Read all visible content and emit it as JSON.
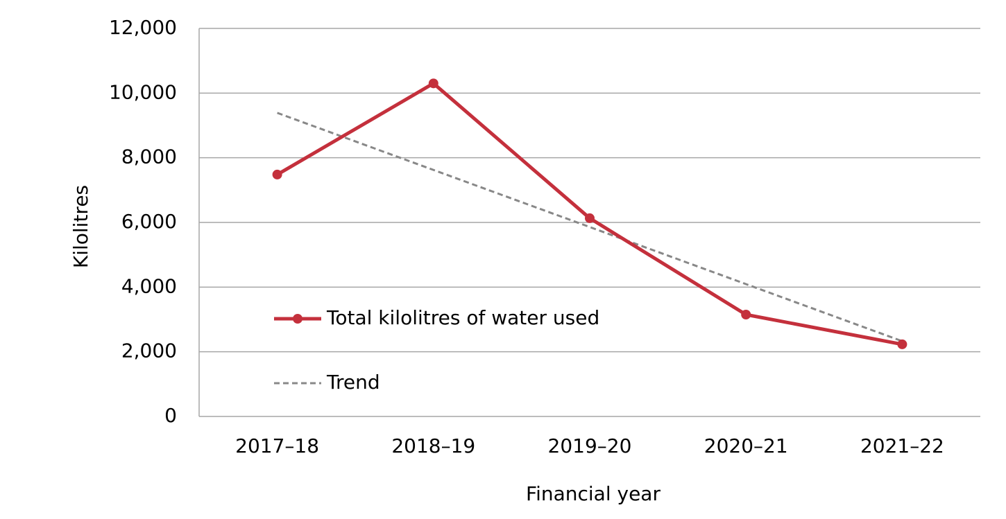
{
  "chart_data": {
    "type": "line",
    "x_label": "Financial year",
    "y_label": "Kilolitres",
    "categories": [
      "2017–18",
      "2018–19",
      "2019–20",
      "2020–21",
      "2021–22"
    ],
    "series": [
      {
        "name": "Total kilolitres of water used",
        "color": "#c4303c",
        "values": [
          7480,
          10300,
          6130,
          3150,
          2230
        ],
        "markers": true
      },
      {
        "name": "Trend",
        "color": "#888888",
        "values": [
          9388,
          7623,
          5858,
          4093,
          2328
        ],
        "dashed": true
      }
    ],
    "ylim": [
      0,
      12000
    ],
    "yticks": [
      0,
      {
        "value": 2000,
        "label": "2,000"
      },
      {
        "value": 4000,
        "label": "4,000"
      },
      {
        "value": 6000,
        "label": "6,000"
      },
      {
        "value": 8000,
        "label": "8,000"
      },
      {
        "value": 10000,
        "label": "10,000"
      },
      {
        "value": 12000,
        "label": "12,000"
      }
    ],
    "grid": true,
    "legend": "left"
  }
}
